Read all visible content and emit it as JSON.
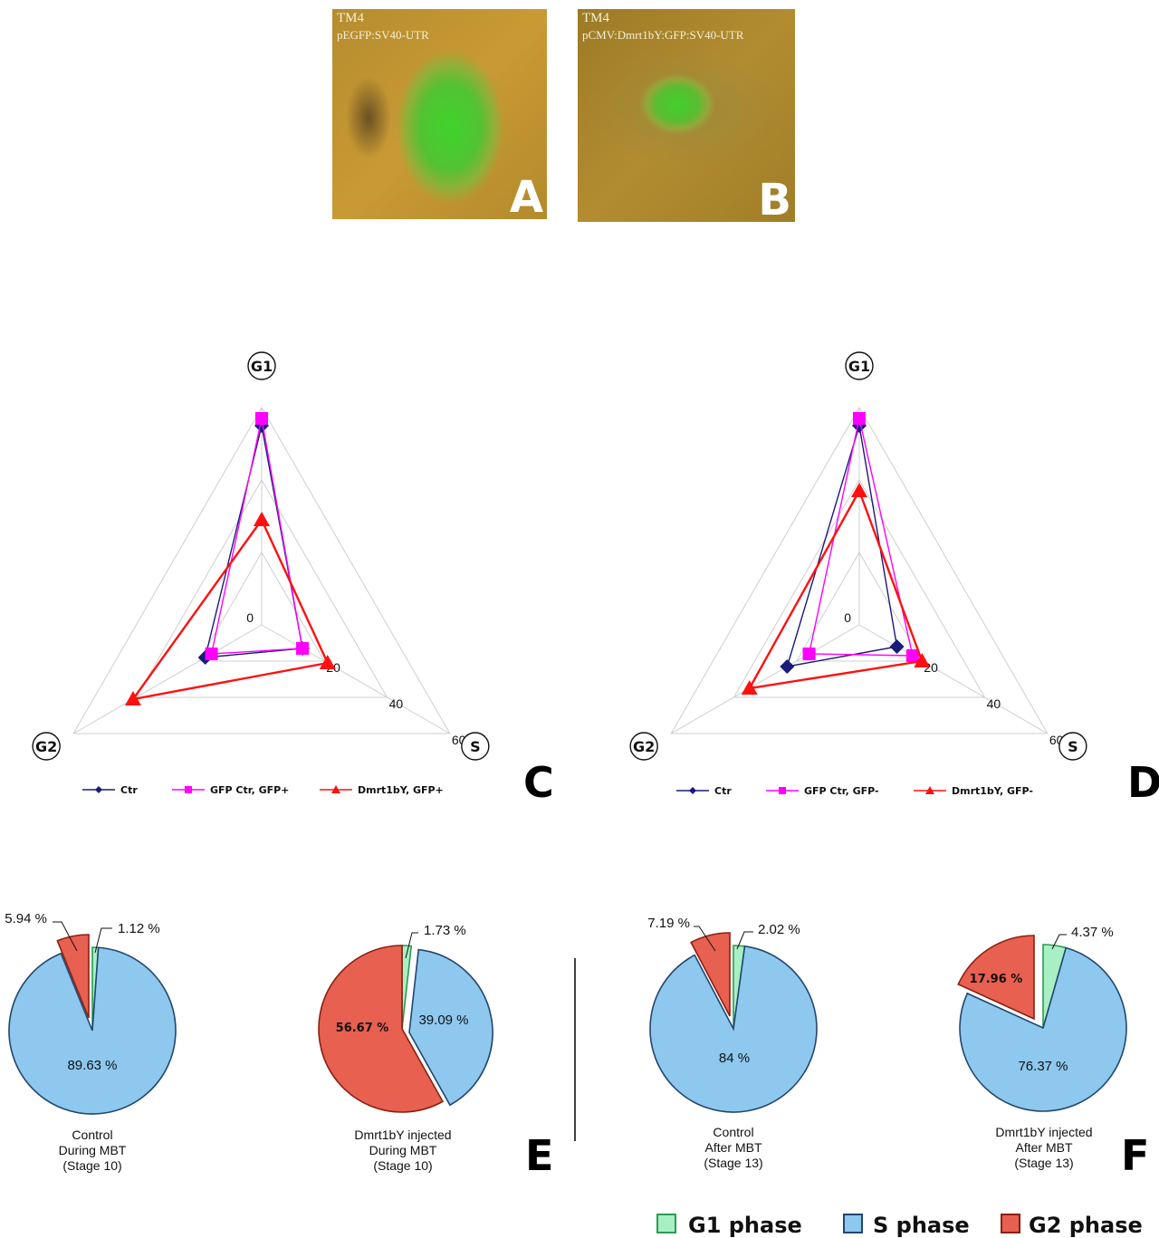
{
  "panels": {
    "a": {
      "line1": "TM4",
      "line2": "pEGFP:SV40-UTR",
      "letter": "A"
    },
    "b": {
      "line1": "TM4",
      "line2": "pCMV:Dmrt1bY:GFP:SV40-UTR",
      "letter": "B"
    },
    "c_letter": "C",
    "d_letter": "D",
    "e_letter": "E",
    "f_letter": "F"
  },
  "colors": {
    "ctr": "#1a1a7a",
    "gfp": "#ff00ff",
    "dmrt": "#ff1010",
    "g1": "#a8f0c4",
    "s": "#8ec8ee",
    "g2": "#e86050"
  },
  "legend": {
    "g1": "G1 phase",
    "s": "S phase",
    "g2": "G2 phase"
  },
  "chart_data": [
    {
      "type": "radar",
      "panel": "C",
      "axes": [
        "G1",
        "S",
        "G2"
      ],
      "ticks": [
        "0",
        "20",
        "40",
        "60"
      ],
      "rlim": [
        0,
        60
      ],
      "grid": true,
      "legend_position": "bottom",
      "series": [
        {
          "name": "Ctr",
          "values": [
            55,
            13,
            18
          ],
          "color": "#1a1a7a",
          "marker": "diamond"
        },
        {
          "name": "GFP Ctr, GFP+",
          "values": [
            57,
            13,
            16
          ],
          "color": "#ff00ff",
          "marker": "square"
        },
        {
          "name": "Dmrt1bY, GFP+",
          "values": [
            29,
            21,
            41
          ],
          "color": "#ff1010",
          "marker": "triangle"
        }
      ]
    },
    {
      "type": "radar",
      "panel": "D",
      "axes": [
        "G1",
        "S",
        "G2"
      ],
      "ticks": [
        "0",
        "20",
        "40",
        "60"
      ],
      "rlim": [
        0,
        60
      ],
      "grid": true,
      "legend_position": "bottom",
      "series": [
        {
          "name": "Ctr",
          "values": [
            55,
            12,
            23
          ],
          "color": "#1a1a7a",
          "marker": "diamond"
        },
        {
          "name": "GFP Ctr, GFP-",
          "values": [
            57,
            17,
            16
          ],
          "color": "#ff00ff",
          "marker": "square"
        },
        {
          "name": "Dmrt1bY, GFP-",
          "values": [
            37,
            20,
            35
          ],
          "color": "#ff1010",
          "marker": "triangle"
        }
      ]
    },
    {
      "type": "pie",
      "panel": "E",
      "caption": [
        "Control",
        "During MBT",
        "(Stage 10)"
      ],
      "slices": [
        {
          "phase": "G1",
          "value": 1.12,
          "label": "1.12 %",
          "exploded": false
        },
        {
          "phase": "S",
          "value": 89.63,
          "label": "89.63 %",
          "exploded": false
        },
        {
          "phase": "G2",
          "value": 5.94,
          "label": "5.94 %",
          "exploded": true
        }
      ]
    },
    {
      "type": "pie",
      "panel": "E",
      "caption": [
        "Dmrt1bY injected",
        "During MBT",
        "(Stage 10)"
      ],
      "slices": [
        {
          "phase": "G1",
          "value": 1.73,
          "label": "1.73 %",
          "exploded": false
        },
        {
          "phase": "S",
          "value": 39.09,
          "label": "39.09 %",
          "exploded": true
        },
        {
          "phase": "G2",
          "value": 56.67,
          "label": "56.67 %",
          "exploded": false
        }
      ]
    },
    {
      "type": "pie",
      "panel": "F",
      "caption": [
        "Control",
        "After MBT",
        "(Stage 13)"
      ],
      "slices": [
        {
          "phase": "G1",
          "value": 2.02,
          "label": "2.02 %",
          "exploded": false
        },
        {
          "phase": "S",
          "value": 84,
          "label": "84 %",
          "exploded": false
        },
        {
          "phase": "G2",
          "value": 7.19,
          "label": "7.19 %",
          "exploded": true
        }
      ]
    },
    {
      "type": "pie",
      "panel": "F",
      "caption": [
        "Dmrt1bY injected",
        "After MBT",
        "(Stage 13)"
      ],
      "slices": [
        {
          "phase": "G1",
          "value": 4.37,
          "label": "4.37 %",
          "exploded": false
        },
        {
          "phase": "S",
          "value": 76.37,
          "label": "76.37 %",
          "exploded": false
        },
        {
          "phase": "G2",
          "value": 17.96,
          "label": "17.96 %",
          "exploded": true
        }
      ]
    }
  ]
}
